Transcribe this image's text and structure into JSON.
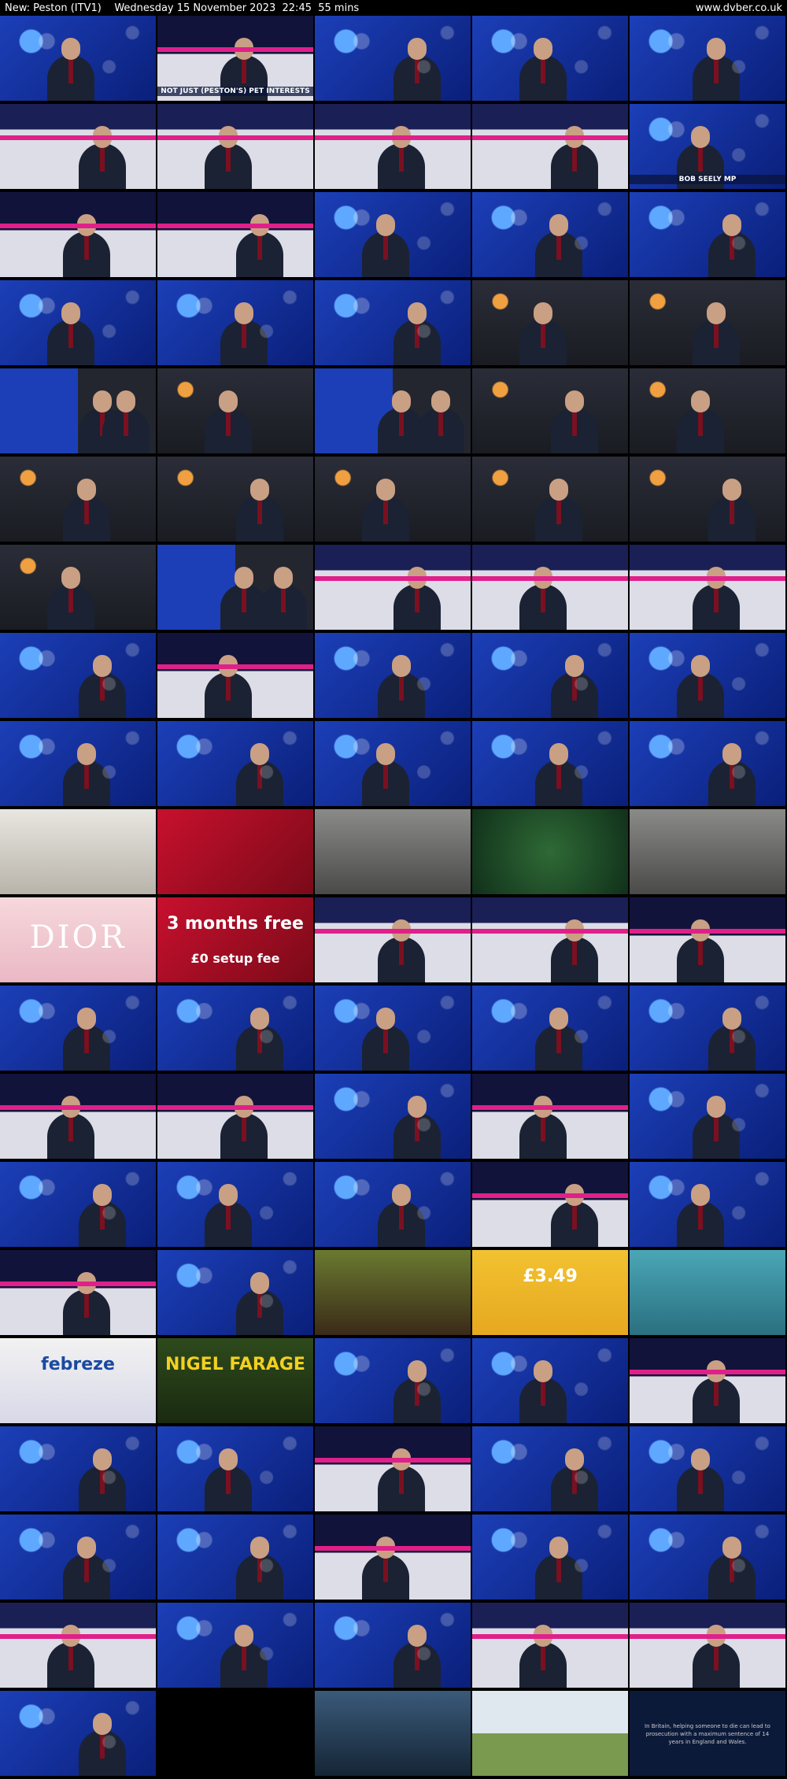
{
  "header": {
    "title": "New: Peston (ITV1)    Wednesday 15 November 2023  22:45  55 mins",
    "site": "www.dvber.co.uk"
  },
  "colors": {
    "studio_blue": "#1c3fb8",
    "studio_pink": "#e0208a",
    "night": "#1a1c22",
    "studio_white": "#dcdde6",
    "black": "#000000"
  },
  "grid": {
    "columns": 5,
    "rows": 20
  },
  "thumbnails": [
    {
      "id": 0,
      "scene": "blue"
    },
    {
      "id": 1,
      "scene": "studio",
      "caption": "NOT JUST (PESTON'S) PET INTERESTS"
    },
    {
      "id": 2,
      "scene": "blue"
    },
    {
      "id": 3,
      "scene": "blue"
    },
    {
      "id": 4,
      "scene": "blue"
    },
    {
      "id": 5,
      "scene": "white"
    },
    {
      "id": 6,
      "scene": "white"
    },
    {
      "id": 7,
      "scene": "white"
    },
    {
      "id": 8,
      "scene": "white"
    },
    {
      "id": 9,
      "scene": "blue",
      "caption": "BOB SEELY MP"
    },
    {
      "id": 10,
      "scene": "studio"
    },
    {
      "id": 11,
      "scene": "studio"
    },
    {
      "id": 12,
      "scene": "blue"
    },
    {
      "id": 13,
      "scene": "blue"
    },
    {
      "id": 14,
      "scene": "blue"
    },
    {
      "id": 15,
      "scene": "blue"
    },
    {
      "id": 16,
      "scene": "blue"
    },
    {
      "id": 17,
      "scene": "blue"
    },
    {
      "id": 18,
      "scene": "night"
    },
    {
      "id": 19,
      "scene": "night"
    },
    {
      "id": 20,
      "scene": "split"
    },
    {
      "id": 21,
      "scene": "night"
    },
    {
      "id": 22,
      "scene": "split"
    },
    {
      "id": 23,
      "scene": "night"
    },
    {
      "id": 24,
      "scene": "night"
    },
    {
      "id": 25,
      "scene": "night"
    },
    {
      "id": 26,
      "scene": "night"
    },
    {
      "id": 27,
      "scene": "night"
    },
    {
      "id": 28,
      "scene": "night"
    },
    {
      "id": 29,
      "scene": "night"
    },
    {
      "id": 30,
      "scene": "night"
    },
    {
      "id": 31,
      "scene": "split"
    },
    {
      "id": 32,
      "scene": "white"
    },
    {
      "id": 33,
      "scene": "white"
    },
    {
      "id": 34,
      "scene": "white"
    },
    {
      "id": 35,
      "scene": "blue"
    },
    {
      "id": 36,
      "scene": "studio"
    },
    {
      "id": 37,
      "scene": "blue"
    },
    {
      "id": 38,
      "scene": "blue"
    },
    {
      "id": 39,
      "scene": "blue"
    },
    {
      "id": 40,
      "scene": "blue"
    },
    {
      "id": 41,
      "scene": "blue"
    },
    {
      "id": 42,
      "scene": "blue"
    },
    {
      "id": 43,
      "scene": "blue"
    },
    {
      "id": 44,
      "scene": "blue"
    },
    {
      "id": 45,
      "scene": "ad_pale"
    },
    {
      "id": 46,
      "scene": "ad_red"
    },
    {
      "id": 47,
      "scene": "ad_grey"
    },
    {
      "id": 48,
      "scene": "ad_green"
    },
    {
      "id": 49,
      "scene": "ad_grey"
    },
    {
      "id": 50,
      "scene": "ad_dior",
      "big_text": "DIOR"
    },
    {
      "id": 51,
      "scene": "ad_red",
      "headline": "3 months free",
      "subline": "£0 setup fee"
    },
    {
      "id": 52,
      "scene": "white"
    },
    {
      "id": 53,
      "scene": "white"
    },
    {
      "id": 54,
      "scene": "studio"
    },
    {
      "id": 55,
      "scene": "blue"
    },
    {
      "id": 56,
      "scene": "blue"
    },
    {
      "id": 57,
      "scene": "blue"
    },
    {
      "id": 58,
      "scene": "blue"
    },
    {
      "id": 59,
      "scene": "blue"
    },
    {
      "id": 60,
      "scene": "studio"
    },
    {
      "id": 61,
      "scene": "studio"
    },
    {
      "id": 62,
      "scene": "blue"
    },
    {
      "id": 63,
      "scene": "studio"
    },
    {
      "id": 64,
      "scene": "blue"
    },
    {
      "id": 65,
      "scene": "blue"
    },
    {
      "id": 66,
      "scene": "blue"
    },
    {
      "id": 67,
      "scene": "blue"
    },
    {
      "id": 68,
      "scene": "studio"
    },
    {
      "id": 69,
      "scene": "blue"
    },
    {
      "id": 70,
      "scene": "studio"
    },
    {
      "id": 71,
      "scene": "blue"
    },
    {
      "id": 72,
      "scene": "ad_brown"
    },
    {
      "id": 73,
      "scene": "ad_yellow",
      "headline": "£3.49"
    },
    {
      "id": 74,
      "scene": "ad_teal"
    },
    {
      "id": 75,
      "scene": "ad_white",
      "headline": "febreze"
    },
    {
      "id": 76,
      "scene": "ad_jungle",
      "headline": "NIGEL FARAGE"
    },
    {
      "id": 77,
      "scene": "blue"
    },
    {
      "id": 78,
      "scene": "blue"
    },
    {
      "id": 79,
      "scene": "studio"
    },
    {
      "id": 80,
      "scene": "blue"
    },
    {
      "id": 81,
      "scene": "blue"
    },
    {
      "id": 82,
      "scene": "studio"
    },
    {
      "id": 83,
      "scene": "blue"
    },
    {
      "id": 84,
      "scene": "blue"
    },
    {
      "id": 85,
      "scene": "blue"
    },
    {
      "id": 86,
      "scene": "blue"
    },
    {
      "id": 87,
      "scene": "studio"
    },
    {
      "id": 88,
      "scene": "blue"
    },
    {
      "id": 89,
      "scene": "blue"
    },
    {
      "id": 90,
      "scene": "white"
    },
    {
      "id": 91,
      "scene": "blue"
    },
    {
      "id": 92,
      "scene": "blue"
    },
    {
      "id": 93,
      "scene": "white"
    },
    {
      "id": 94,
      "scene": "white"
    },
    {
      "id": 95,
      "scene": "blue"
    },
    {
      "id": 96,
      "scene": "black"
    },
    {
      "id": 97,
      "scene": "city"
    },
    {
      "id": 98,
      "scene": "ad_park"
    },
    {
      "id": 99,
      "scene": "ad_navy",
      "text": "In Britain, helping someone to die can lead to prosecution with a maximum sentence of 14 years in England and Wales."
    }
  ]
}
